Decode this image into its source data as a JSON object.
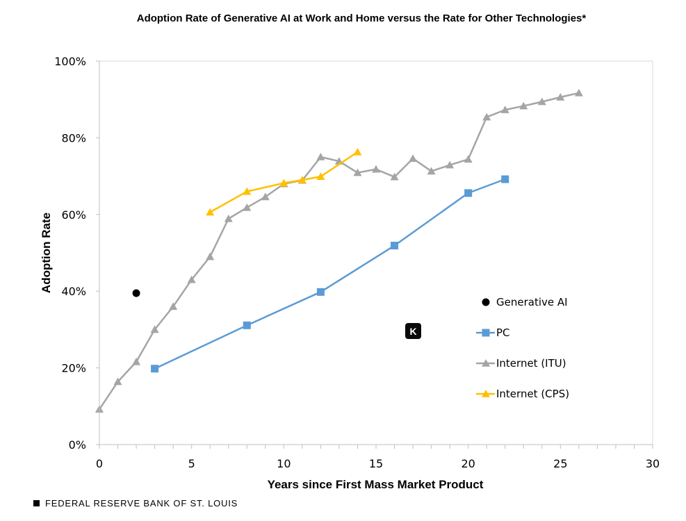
{
  "chart_data": {
    "type": "line",
    "title": "Adoption Rate of Generative AI at Work and Home versus the Rate for Other Technologies*",
    "xlabel": "Years since First Mass Market Product",
    "ylabel": "Adoption Rate",
    "xlim": [
      0,
      30
    ],
    "ylim": [
      0,
      100
    ],
    "x_ticks": [
      0,
      5,
      10,
      15,
      20,
      25,
      30
    ],
    "x_tick_labels": [
      "0",
      "5",
      "10",
      "15",
      "20",
      "25",
      "30"
    ],
    "y_ticks": [
      0,
      20,
      40,
      60,
      80,
      100
    ],
    "y_tick_labels": [
      "0%",
      "20%",
      "40%",
      "60%",
      "80%",
      "100%"
    ],
    "grid": false,
    "legend_position": "right",
    "series": [
      {
        "name": "Generative AI",
        "marker": "circle",
        "color": "#000000",
        "line": false,
        "x": [
          2
        ],
        "y": [
          39.5
        ]
      },
      {
        "name": "PC",
        "marker": "square",
        "color": "#5b9bd5",
        "line": true,
        "x": [
          3,
          8,
          12,
          16,
          20,
          22
        ],
        "y": [
          19.8,
          31.1,
          39.8,
          51.9,
          65.6,
          69.2
        ]
      },
      {
        "name": "Internet (ITU)",
        "marker": "triangle",
        "color": "#a5a5a5",
        "line": true,
        "x": [
          0,
          1,
          2,
          3,
          4,
          5,
          6,
          7,
          8,
          9,
          10,
          11,
          12,
          13,
          14,
          15,
          16,
          17,
          18,
          19,
          20,
          21,
          22,
          23,
          24,
          25,
          26
        ],
        "y": [
          9.2,
          16.4,
          21.6,
          30.0,
          36.0,
          43.0,
          49.0,
          58.9,
          61.8,
          64.6,
          68.0,
          68.9,
          75.0,
          73.9,
          70.9,
          71.8,
          69.8,
          74.6,
          71.3,
          72.9,
          74.4,
          85.4,
          87.3,
          88.3,
          89.4,
          90.6,
          91.7
        ]
      },
      {
        "name": "Internet (CPS)",
        "marker": "triangle",
        "color": "#ffc000",
        "line": true,
        "x": [
          6,
          8,
          10,
          11,
          12,
          14
        ],
        "y": [
          60.6,
          66.0,
          68.2,
          69.0,
          69.9,
          76.3
        ]
      }
    ]
  },
  "footer": {
    "source_label": "FEDERAL RESERVE BANK OF ST. LOUIS"
  },
  "overlay": {
    "badge_icon": "k-logo-icon",
    "badge_text": "K"
  }
}
